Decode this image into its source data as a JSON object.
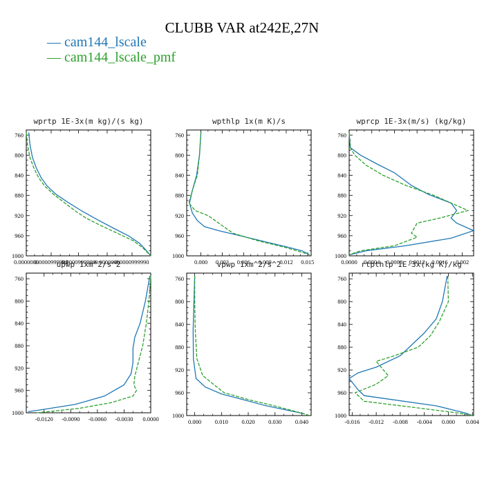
{
  "figure": {
    "title": "CLUBB VAR at242E,27N",
    "legend": [
      {
        "label": "cam144_lscale",
        "color": "#1f77b4"
      },
      {
        "label": "cam144_lscale_pmf",
        "color": "#2ca02c"
      }
    ]
  },
  "chart_data": [
    {
      "type": "line",
      "title": "wprtp  1E-3x(m kg)/(s kg)",
      "ylim": [
        1000,
        750
      ],
      "yreversed": true,
      "yticks": [
        "760",
        "800",
        "840",
        "880",
        "920",
        "960",
        "1000"
      ],
      "xlim": [
        0,
        1
      ],
      "xticks": [
        {
          "v": 0.0,
          "label": "0.0000000"
        },
        {
          "v": 0.2,
          "label": "0.0000999999"
        },
        {
          "v": 0.42,
          "label": "0.0000999998"
        },
        {
          "v": 0.65,
          "label": "0.0000000"
        },
        {
          "v": 0.85,
          "label": "0.0000999990"
        }
      ],
      "series": [
        {
          "name": "cam144_lscale",
          "color": "#1f77b4",
          "dashed": false,
          "points": [
            [
              0.02,
              755
            ],
            [
              0.03,
              780
            ],
            [
              0.05,
              805
            ],
            [
              0.08,
              825
            ],
            [
              0.12,
              845
            ],
            [
              0.17,
              862
            ],
            [
              0.24,
              878
            ],
            [
              0.33,
              893
            ],
            [
              0.44,
              910
            ],
            [
              0.57,
              928
            ],
            [
              0.7,
              945
            ],
            [
              0.82,
              960
            ],
            [
              0.91,
              975
            ],
            [
              0.96,
              988
            ],
            [
              1.0,
              1000
            ]
          ]
        },
        {
          "name": "cam144_lscale_pmf",
          "color": "#2ca02c",
          "dashed": true,
          "points": [
            [
              0.0,
              755
            ],
            [
              0.01,
              780
            ],
            [
              0.03,
              805
            ],
            [
              0.06,
              825
            ],
            [
              0.1,
              845
            ],
            [
              0.15,
              862
            ],
            [
              0.22,
              878
            ],
            [
              0.31,
              895
            ],
            [
              0.4,
              912
            ],
            [
              0.48,
              925
            ],
            [
              0.6,
              940
            ],
            [
              0.73,
              955
            ],
            [
              0.86,
              970
            ],
            [
              0.94,
              985
            ],
            [
              1.0,
              1000
            ]
          ]
        }
      ]
    },
    {
      "type": "line",
      "title": "wpthlp  1x(m K)/s",
      "ylim": [
        1000,
        750
      ],
      "yreversed": true,
      "yticks": [
        "760",
        "800",
        "840",
        "880",
        "920",
        "960",
        "1000"
      ],
      "xlim": [
        -0.002,
        0.0155
      ],
      "xticks": [
        {
          "v": 0.0,
          "label": "0.000"
        },
        {
          "v": 0.003,
          "label": "0.003"
        },
        {
          "v": 0.006,
          "label": "0.006"
        },
        {
          "v": 0.009,
          "label": "0.009"
        },
        {
          "v": 0.012,
          "label": "0.012"
        },
        {
          "v": 0.015,
          "label": "0.015"
        }
      ],
      "series": [
        {
          "name": "cam144_lscale",
          "color": "#1f77b4",
          "dashed": false,
          "points": [
            [
              0.0,
              755
            ],
            [
              -0.0002,
              800
            ],
            [
              -0.0006,
              840
            ],
            [
              -0.0012,
              870
            ],
            [
              -0.0016,
              895
            ],
            [
              -0.0012,
              915
            ],
            [
              -0.0005,
              930
            ],
            [
              0.0005,
              942
            ],
            [
              0.0025,
              950
            ],
            [
              0.0055,
              960
            ],
            [
              0.009,
              972
            ],
            [
              0.012,
              982
            ],
            [
              0.0142,
              990
            ],
            [
              0.0152,
              997
            ]
          ]
        },
        {
          "name": "cam144_lscale_pmf",
          "color": "#2ca02c",
          "dashed": true,
          "points": [
            [
              0.0,
              755
            ],
            [
              -0.0002,
              800
            ],
            [
              -0.0005,
              840
            ],
            [
              -0.0012,
              870
            ],
            [
              -0.0017,
              895
            ],
            [
              -0.0008,
              910
            ],
            [
              0.001,
              920
            ],
            [
              0.0025,
              935
            ],
            [
              0.0045,
              955
            ],
            [
              0.008,
              970
            ],
            [
              0.0115,
              982
            ],
            [
              0.014,
              992
            ],
            [
              0.0153,
              998
            ]
          ]
        }
      ]
    },
    {
      "type": "line",
      "title": "wprcp  1E-3x(m/s) (kg/kg)",
      "ylim": [
        1000,
        750
      ],
      "yreversed": true,
      "yticks": [
        "760",
        "800",
        "840",
        "880",
        "920",
        "960",
        "1000"
      ],
      "xlim": [
        0,
        0.0022
      ],
      "xticks": [
        {
          "v": 0.0,
          "label": "0.0000"
        },
        {
          "v": 0.0004,
          "label": "0.0004"
        },
        {
          "v": 0.0008,
          "label": "0.0008"
        },
        {
          "v": 0.0012,
          "label": "0.0012"
        },
        {
          "v": 0.0016,
          "label": "0.0016"
        },
        {
          "v": 0.002,
          "label": "0.002"
        }
      ],
      "series": [
        {
          "name": "cam144_lscale",
          "color": "#1f77b4",
          "dashed": false,
          "points": [
            [
              0.0,
              755
            ],
            [
              2e-05,
              785
            ],
            [
              0.0002,
              800
            ],
            [
              0.0005,
              818
            ],
            [
              0.0008,
              835
            ],
            [
              0.0011,
              860
            ],
            [
              0.0014,
              878
            ],
            [
              0.0018,
              895
            ],
            [
              0.0019,
              910
            ],
            [
              0.0018,
              925
            ],
            [
              0.0019,
              935
            ],
            [
              0.0022,
              950
            ],
            [
              0.0018,
              965
            ],
            [
              0.001,
              980
            ],
            [
              0.0003,
              990
            ],
            [
              0.0,
              998
            ]
          ]
        },
        {
          "name": "cam144_lscale_pmf",
          "color": "#2ca02c",
          "dashed": true,
          "points": [
            [
              0.0,
              755
            ],
            [
              2e-05,
              785
            ],
            [
              0.0001,
              800
            ],
            [
              0.0003,
              820
            ],
            [
              0.0006,
              840
            ],
            [
              0.001,
              860
            ],
            [
              0.0015,
              880
            ],
            [
              0.0021,
              910
            ],
            [
              0.0016,
              925
            ],
            [
              0.0012,
              935
            ],
            [
              0.0011,
              955
            ],
            [
              0.0012,
              963
            ],
            [
              0.0008,
              980
            ],
            [
              0.0002,
              990
            ],
            [
              0.0,
              998
            ]
          ]
        }
      ]
    },
    {
      "type": "line",
      "title": "upwp  1xm^2/s^2",
      "ylim": [
        1000,
        750
      ],
      "yreversed": true,
      "yticks": [
        "760",
        "800",
        "840",
        "880",
        "920",
        "960",
        "1000"
      ],
      "xlim": [
        -0.014,
        0.0
      ],
      "xticks": [
        {
          "v": -0.012,
          "label": "-0.0120"
        },
        {
          "v": -0.009,
          "label": "-0.0090"
        },
        {
          "v": -0.006,
          "label": "-0.0060"
        },
        {
          "v": -0.003,
          "label": "-0.0030"
        },
        {
          "v": 0.0,
          "label": "0.0000"
        }
      ],
      "series": [
        {
          "name": "cam144_lscale",
          "color": "#1f77b4",
          "dashed": false,
          "points": [
            [
              -0.0001,
              755
            ],
            [
              -0.0006,
              800
            ],
            [
              -0.0012,
              840
            ],
            [
              -0.0018,
              865
            ],
            [
              -0.002,
              885
            ],
            [
              -0.002,
              910
            ],
            [
              -0.0022,
              930
            ],
            [
              -0.003,
              950
            ],
            [
              -0.0052,
              970
            ],
            [
              -0.0085,
              985
            ],
            [
              -0.0125,
              995
            ],
            [
              -0.0138,
              998
            ]
          ]
        },
        {
          "name": "cam144_lscale_pmf",
          "color": "#2ca02c",
          "dashed": true,
          "points": [
            [
              0.0,
              755
            ],
            [
              -0.0002,
              800
            ],
            [
              -0.0005,
              840
            ],
            [
              -0.0009,
              880
            ],
            [
              -0.0014,
              910
            ],
            [
              -0.0018,
              935
            ],
            [
              -0.0019,
              950
            ],
            [
              -0.0016,
              960
            ],
            [
              -0.002,
              970
            ],
            [
              -0.0045,
              982
            ],
            [
              -0.008,
              992
            ],
            [
              -0.011,
              997
            ],
            [
              -0.0128,
              1000
            ]
          ]
        }
      ]
    },
    {
      "type": "line",
      "title": "vpwp  1xm^2/s^2",
      "ylim": [
        1000,
        750
      ],
      "yreversed": true,
      "yticks": [
        "760",
        "800",
        "840",
        "880",
        "920",
        "960",
        "1000"
      ],
      "xlim": [
        -0.003,
        0.0435
      ],
      "xticks": [
        {
          "v": 0.0,
          "label": "0.000"
        },
        {
          "v": 0.01,
          "label": "0.010"
        },
        {
          "v": 0.02,
          "label": "0.020"
        },
        {
          "v": 0.03,
          "label": "0.030"
        },
        {
          "v": 0.04,
          "label": "0.040"
        }
      ],
      "series": [
        {
          "name": "cam144_lscale",
          "color": "#1f77b4",
          "dashed": false,
          "points": [
            [
              0.0,
              755
            ],
            [
              -0.0003,
              800
            ],
            [
              -0.0006,
              850
            ],
            [
              -0.0005,
              900
            ],
            [
              0.0005,
              935
            ],
            [
              0.004,
              950
            ],
            [
              0.01,
              962
            ],
            [
              0.018,
              972
            ],
            [
              0.026,
              982
            ],
            [
              0.034,
              990
            ],
            [
              0.041,
              997
            ]
          ]
        },
        {
          "name": "cam144_lscale_pmf",
          "color": "#2ca02c",
          "dashed": true,
          "points": [
            [
              0.0,
              755
            ],
            [
              0.0,
              800
            ],
            [
              0.0002,
              850
            ],
            [
              0.0008,
              900
            ],
            [
              0.003,
              930
            ],
            [
              0.007,
              945
            ],
            [
              0.011,
              960
            ],
            [
              0.02,
              972
            ],
            [
              0.029,
              982
            ],
            [
              0.037,
              992
            ],
            [
              0.043,
              1000
            ]
          ]
        }
      ]
    },
    {
      "type": "line",
      "title": "rtpthlp  1E-3x(kg K)/kg",
      "ylim": [
        1000,
        750
      ],
      "yreversed": true,
      "yticks": [
        "760",
        "800",
        "840",
        "880",
        "920",
        "960",
        "1000"
      ],
      "xlim": [
        -0.0165,
        0.0042
      ],
      "xticks": [
        {
          "v": -0.016,
          "label": "-0.016"
        },
        {
          "v": -0.012,
          "label": "-0.012"
        },
        {
          "v": -0.008,
          "label": "-0.008"
        },
        {
          "v": -0.004,
          "label": "-0.004"
        },
        {
          "v": 0.0,
          "label": "0.000"
        },
        {
          "v": 0.004,
          "label": "0.004"
        }
      ],
      "series": [
        {
          "name": "cam144_lscale",
          "color": "#1f77b4",
          "dashed": false,
          "points": [
            [
              -0.0002,
              755
            ],
            [
              -0.001,
              800
            ],
            [
              -0.002,
              830
            ],
            [
              -0.004,
              855
            ],
            [
              -0.006,
              875
            ],
            [
              -0.008,
              895
            ],
            [
              -0.012,
              915
            ],
            [
              -0.015,
              925
            ],
            [
              -0.0165,
              935
            ],
            [
              -0.015,
              955
            ],
            [
              -0.014,
              965
            ],
            [
              -0.002,
              983
            ],
            [
              0.003,
              996
            ],
            [
              0.004,
              1000
            ]
          ]
        },
        {
          "name": "cam144_lscale_pmf",
          "color": "#2ca02c",
          "dashed": true,
          "points": [
            [
              -0.0001,
              755
            ],
            [
              0.0,
              800
            ],
            [
              -0.0015,
              835
            ],
            [
              -0.003,
              860
            ],
            [
              -0.005,
              880
            ],
            [
              -0.009,
              895
            ],
            [
              -0.012,
              905
            ],
            [
              -0.01,
              930
            ],
            [
              -0.012,
              945
            ],
            [
              -0.0155,
              960
            ],
            [
              -0.014,
              975
            ],
            [
              -0.004,
              988
            ],
            [
              0.002,
              996
            ],
            [
              0.004,
              1000
            ]
          ]
        }
      ]
    }
  ]
}
